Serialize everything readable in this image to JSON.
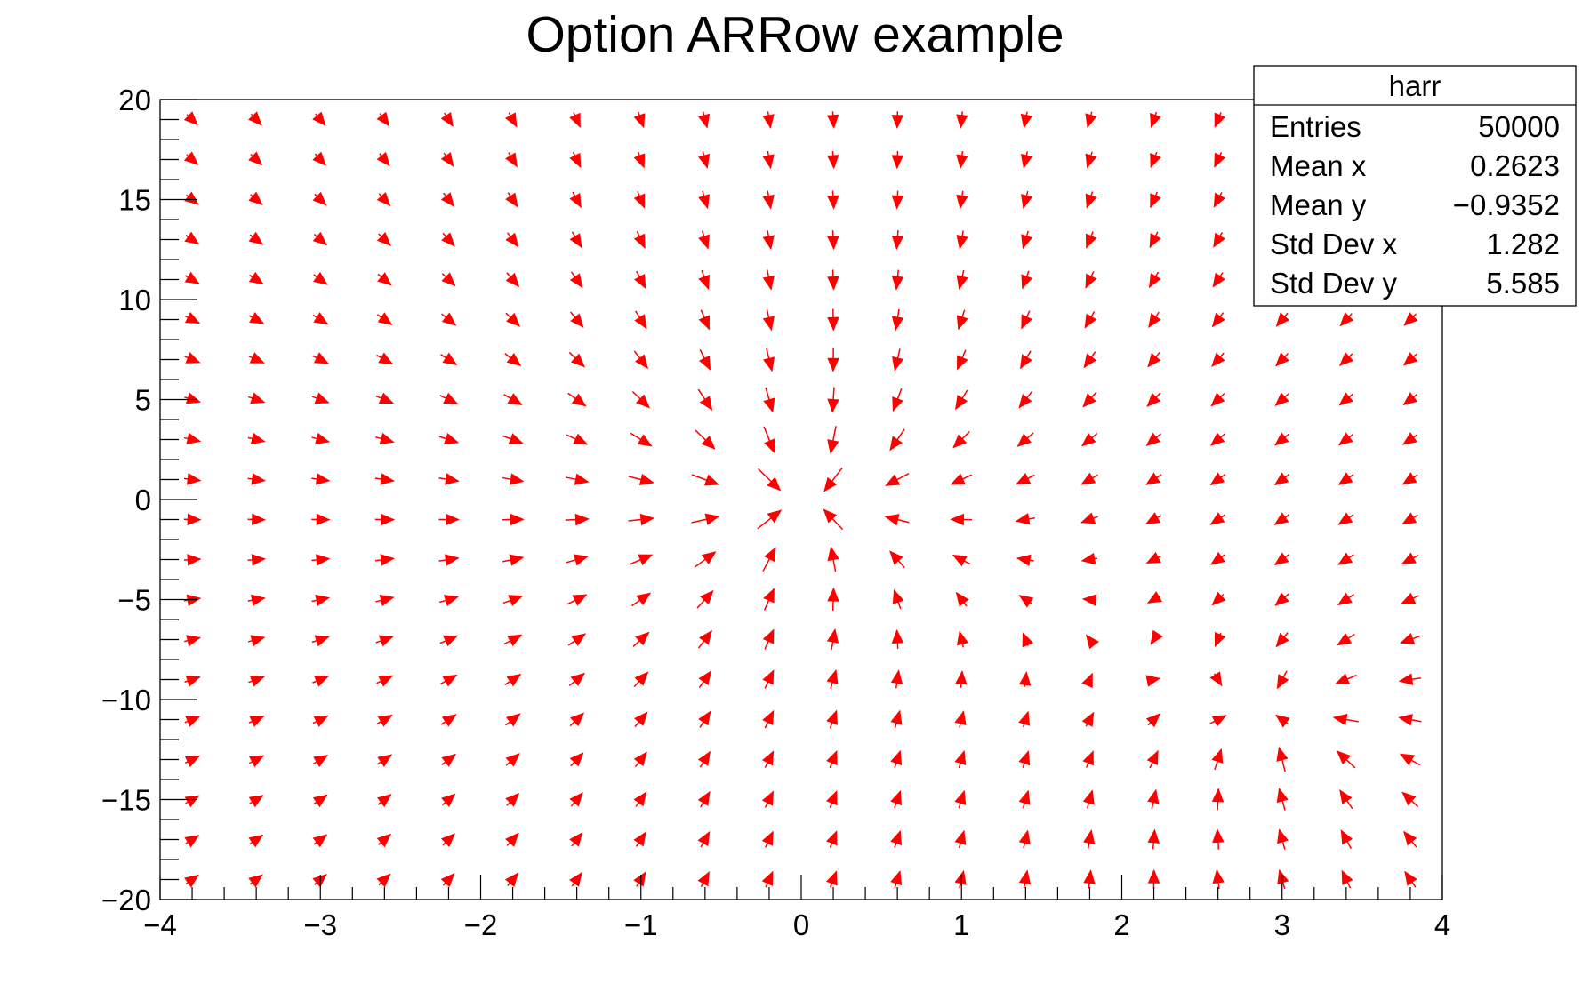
{
  "chart_data": {
    "type": "vector-field",
    "title": "Option ARRow example",
    "xlim": [
      -4,
      4
    ],
    "ylim": [
      -20,
      20
    ],
    "x_ticks": [
      -4,
      -3,
      -2,
      -1,
      0,
      1,
      2,
      3,
      4
    ],
    "x_tick_labels": [
      "−4",
      "−3",
      "−2",
      "−1",
      "0",
      "1",
      "2",
      "3",
      "4"
    ],
    "y_ticks": [
      -20,
      -15,
      -10,
      -5,
      0,
      5,
      10,
      15,
      20
    ],
    "y_tick_labels": [
      "−20",
      "−15",
      "−10",
      "−5",
      "0",
      "5",
      "10",
      "15",
      "20"
    ],
    "grid": false,
    "arrow_color": "#ff0000",
    "bins": {
      "nx": 20,
      "ny": 20
    },
    "sources": [
      {
        "x": 0.0,
        "y": 0.0,
        "type": "sink"
      },
      {
        "x": 3.0,
        "y": -11.0,
        "type": "sink"
      }
    ],
    "stats": {
      "name": "harr",
      "rows": [
        {
          "label": "Entries",
          "value": "50000"
        },
        {
          "label": "Mean x",
          "value": "0.2623"
        },
        {
          "label": "Mean y",
          "value": "−0.9352"
        },
        {
          "label": "Std Dev x",
          "value": "1.282"
        },
        {
          "label": "Std Dev y",
          "value": "5.585"
        }
      ]
    }
  }
}
